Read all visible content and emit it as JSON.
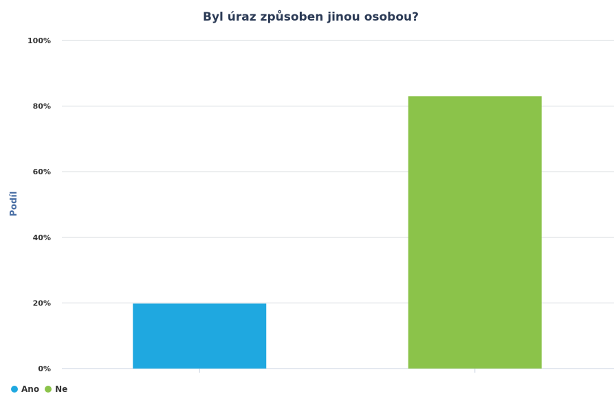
{
  "chart_data": {
    "type": "bar",
    "title": "Byl úraz způsoben jinou osobou?",
    "ylabel": "Podíl",
    "xlabel": "",
    "ylim": [
      0,
      100
    ],
    "yticks": [
      "0%",
      "20%",
      "40%",
      "60%",
      "80%",
      "100%"
    ],
    "yticks_values": [
      0,
      20,
      40,
      60,
      80,
      100
    ],
    "grid": true,
    "legend_position": "bottom-left",
    "series": [
      {
        "name": "Ano",
        "value": 19.8,
        "color": "#1fa8e0"
      },
      {
        "name": "Ne",
        "value": 83,
        "color": "#8bc34a"
      }
    ]
  }
}
